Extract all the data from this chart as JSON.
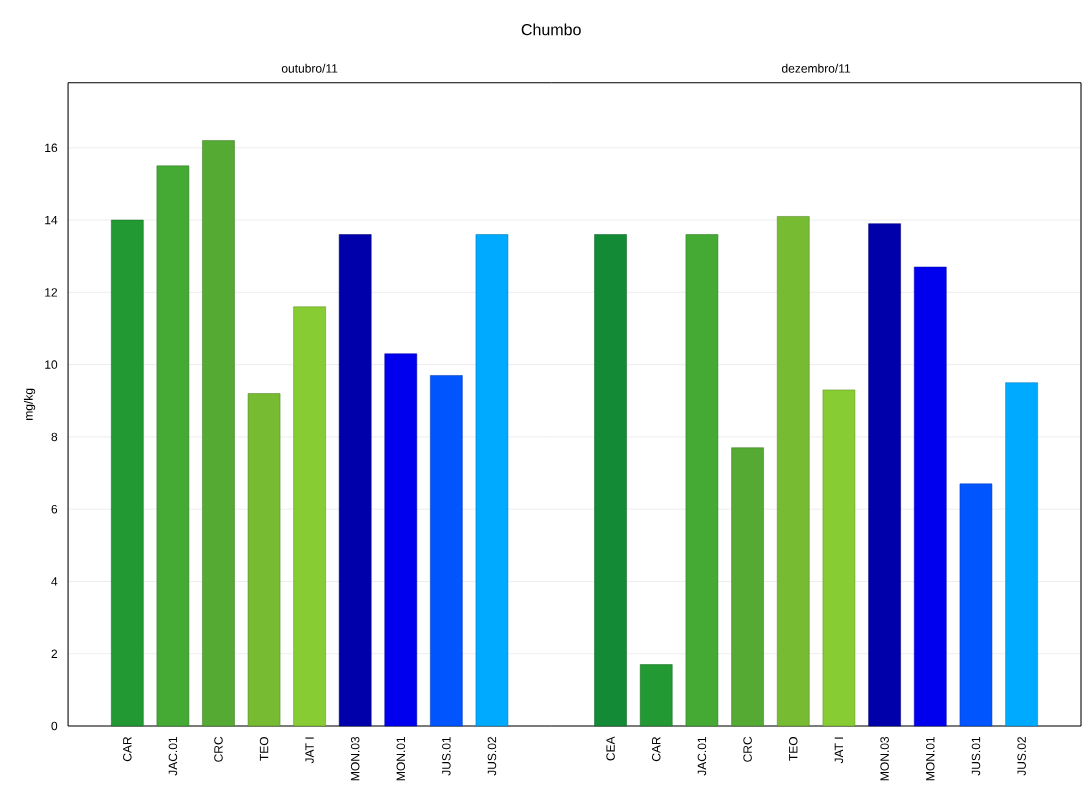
{
  "chart_data": [
    {
      "type": "bar",
      "title": "Chumbo",
      "subtitle": "outubro/11",
      "ylabel": "mg/kg",
      "categories": [
        "CAR",
        "JAC.01",
        "CRC",
        "TEO",
        "JAT I",
        "MON.03",
        "MON.01",
        "JUS.01",
        "JUS.02"
      ],
      "values": [
        14.0,
        15.5,
        16.2,
        9.2,
        11.6,
        13.6,
        10.3,
        9.7,
        13.6
      ],
      "colors": [
        "#229933",
        "#44aa33",
        "#55aa33",
        "#77bb33",
        "#88cc33",
        "#0000aa",
        "#0000ee",
        "#0055ff",
        "#00aaff"
      ],
      "ylim": [
        0,
        17.8
      ],
      "yticks": [
        0,
        2,
        4,
        6,
        8,
        10,
        12,
        14,
        16
      ],
      "grid": "y"
    },
    {
      "type": "bar",
      "subtitle": "dezembro/11",
      "categories": [
        "CEA",
        "CAR",
        "JAC.01",
        "CRC",
        "TEO",
        "JAT I",
        "MON.03",
        "MON.01",
        "JUS.01",
        "JUS.02"
      ],
      "values": [
        13.6,
        1.7,
        13.6,
        7.7,
        14.1,
        9.3,
        13.9,
        12.7,
        6.7,
        9.5
      ],
      "colors": [
        "#138a36",
        "#229933",
        "#44aa33",
        "#55aa33",
        "#77bb33",
        "#88cc33",
        "#0000aa",
        "#0000ee",
        "#0055ff",
        "#00aaff"
      ],
      "ylim": [
        0,
        17.8
      ],
      "yticks": [
        0,
        2,
        4,
        6,
        8,
        10,
        12,
        14,
        16
      ],
      "grid": "y",
      "tick_labels": "x"
    }
  ]
}
